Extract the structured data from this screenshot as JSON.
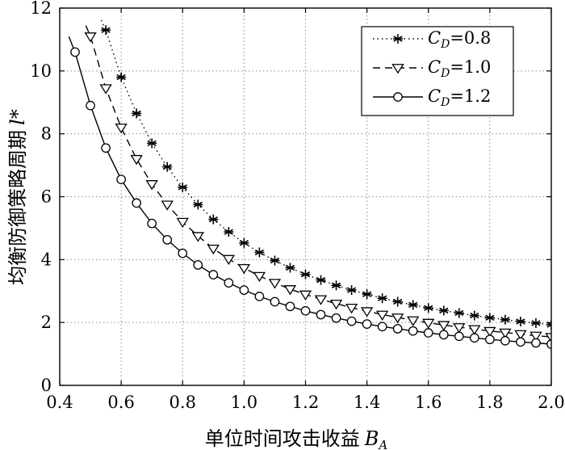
{
  "chart_data": {
    "type": "line",
    "xlabel": "单位时间攻击收益",
    "xlabel_var": "B",
    "xlabel_sub": "A",
    "ylabel": "均衡防御策略周期",
    "ylabel_var": "l*",
    "xlim": [
      0.4,
      2.0
    ],
    "ylim": [
      0,
      12
    ],
    "xticks": [
      "0.4",
      "0.6",
      "0.8",
      "1.0",
      "1.2",
      "1.4",
      "1.6",
      "1.8",
      "2.0"
    ],
    "yticks": [
      "0",
      "2",
      "4",
      "6",
      "8",
      "10",
      "12"
    ],
    "grid": true,
    "legend_position": "top-right",
    "x": [
      0.45,
      0.5,
      0.55,
      0.6,
      0.65,
      0.7,
      0.75,
      0.8,
      0.85,
      0.9,
      0.95,
      1.0,
      1.05,
      1.1,
      1.15,
      1.2,
      1.25,
      1.3,
      1.35,
      1.4,
      1.45,
      1.5,
      1.55,
      1.6,
      1.65,
      1.7,
      1.75,
      1.8,
      1.85,
      1.9,
      1.95,
      2.0
    ],
    "series": [
      {
        "name": "=0.8",
        "legend_var": "C",
        "legend_sub": "D",
        "marker": "star",
        "line": "dotted",
        "curve_start_x": 0.535,
        "values": [
          null,
          null,
          11.3,
          9.8,
          8.65,
          7.7,
          6.95,
          6.3,
          5.75,
          5.28,
          4.88,
          4.53,
          4.23,
          3.97,
          3.74,
          3.53,
          3.35,
          3.18,
          3.03,
          2.9,
          2.77,
          2.66,
          2.56,
          2.46,
          2.38,
          2.3,
          2.22,
          2.15,
          2.09,
          2.03,
          1.98,
          1.93
        ]
      },
      {
        "name": "=1.0",
        "legend_var": "C",
        "legend_sub": "D",
        "marker": "triangle-down",
        "line": "dashed",
        "curve_start_x": 0.485,
        "values": [
          null,
          11.1,
          9.45,
          8.2,
          7.2,
          6.4,
          5.75,
          5.2,
          4.75,
          4.35,
          4.02,
          3.73,
          3.48,
          3.26,
          3.06,
          2.89,
          2.74,
          2.6,
          2.47,
          2.36,
          2.25,
          2.16,
          2.07,
          1.99,
          1.92,
          1.85,
          1.79,
          1.73,
          1.68,
          1.63,
          1.58,
          1.54
        ]
      },
      {
        "name": "=1.2",
        "legend_var": "C",
        "legend_sub": "D",
        "marker": "circle",
        "line": "solid",
        "curve_start_x": 0.43,
        "values": [
          10.6,
          8.9,
          7.55,
          6.55,
          5.8,
          5.15,
          4.63,
          4.2,
          3.83,
          3.52,
          3.26,
          3.03,
          2.83,
          2.66,
          2.51,
          2.37,
          2.25,
          2.14,
          2.04,
          1.95,
          1.87,
          1.8,
          1.73,
          1.67,
          1.61,
          1.56,
          1.51,
          1.46,
          1.42,
          1.38,
          1.35,
          1.31
        ]
      }
    ]
  }
}
